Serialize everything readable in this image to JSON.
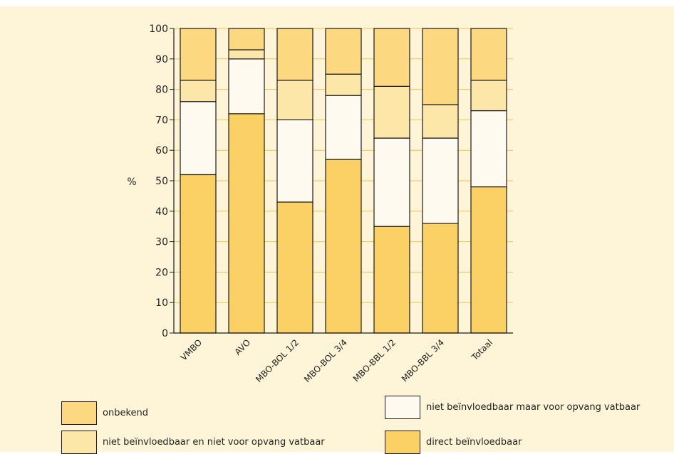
{
  "chart_data": {
    "type": "bar",
    "stacked": true,
    "categories": [
      "VMBO",
      "AVO",
      "MBO-BOL 1/2",
      "MBO-BOL 3/4",
      "MBO-BBL 1/2",
      "MBO-BBL 3/4",
      "Totaal"
    ],
    "series": [
      {
        "name": "direct beïnvloedbaar",
        "color": "#fbd065",
        "values": [
          52,
          72,
          43,
          57,
          35,
          36,
          48
        ]
      },
      {
        "name": "niet beïnvloedbaar maar voor opvang vatbaar",
        "color": "#fefaef",
        "values": [
          24,
          18,
          27,
          21,
          29,
          28,
          25
        ]
      },
      {
        "name": "niet beïnvloedbaar en niet voor opvang vatbaar",
        "color": "#fde7a8",
        "values": [
          7,
          3,
          13,
          7,
          17,
          11,
          10
        ]
      },
      {
        "name": "onbekend",
        "color": "#fcd981",
        "values": [
          17,
          7,
          17,
          15,
          19,
          25,
          17
        ]
      }
    ],
    "ylabel": "%",
    "ylim": [
      0,
      100
    ],
    "yticks": [
      "0",
      "10",
      "20",
      "30",
      "40",
      "50",
      "60",
      "70",
      "80",
      "90",
      "100"
    ],
    "grid": true,
    "gridColor": "#f2c24b",
    "legend": {
      "placement": "bottom",
      "items": [
        {
          "label": "onbekend",
          "color": "#fcd981"
        },
        {
          "label": "niet beïnvloedbaar maar voor opvang vatbaar",
          "color": "#fefaef"
        },
        {
          "label": "niet beïnvloedbaar en niet voor opvang vatbaar",
          "color": "#fde7a8"
        },
        {
          "label": "direct beïnvloedbaar",
          "color": "#fbd065"
        }
      ]
    }
  }
}
